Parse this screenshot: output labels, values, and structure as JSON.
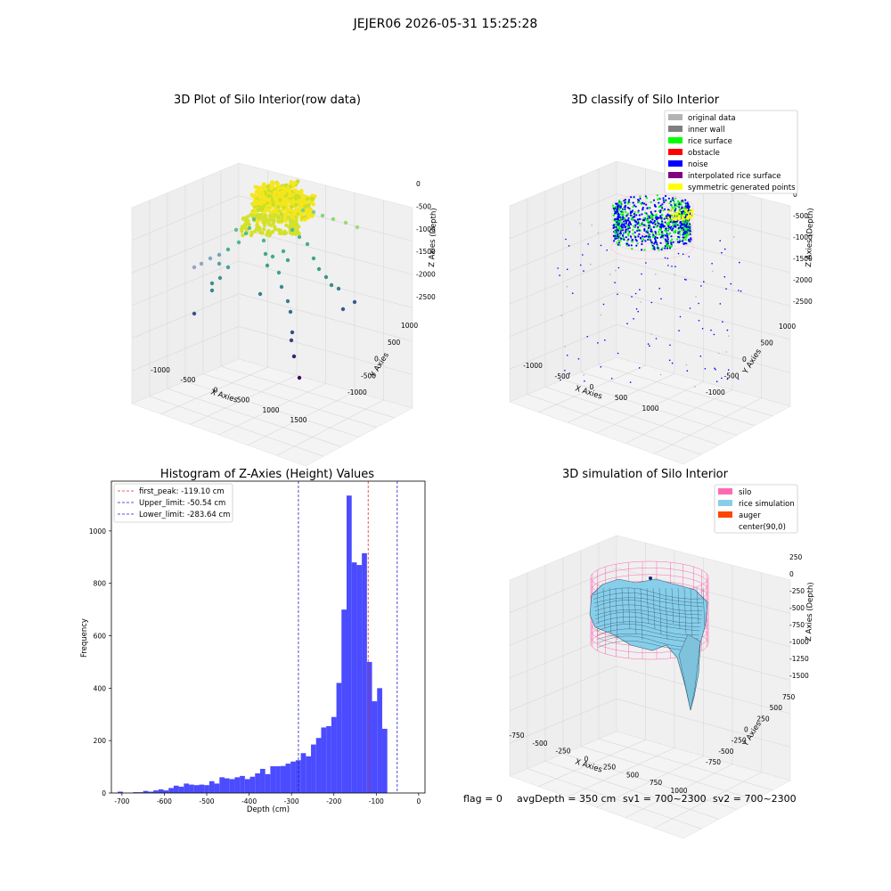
{
  "figure": {
    "title": "JEJER06 2026-05-31 15:25:28",
    "status_line": {
      "flag": "flag = 0",
      "avg_depth": "avgDepth = 350 cm",
      "sv1": "sv1 = 700~2300",
      "sv2": "sv2 = 700~2300"
    }
  },
  "colors": {
    "hist_bar": "#4b4bff",
    "first_peak": "#e03030",
    "limit_lines": "#2020c0",
    "pane_wall": "#eeeeee",
    "pane_floor": "#f4f4f4",
    "grid": "#d8d8d8"
  },
  "chart_data": [
    {
      "type": "scatter",
      "projection": "3d",
      "title": "3D Plot of Silo Interior(row data)",
      "xlabel": "X Axies",
      "ylabel": "Y Axies",
      "zlabel": "Z Axies (Depth)",
      "x_ticks": [
        "-1000",
        "-500",
        "0",
        "500",
        "1000",
        "1500"
      ],
      "y_ticks": [
        "-1000",
        "-500",
        "0",
        "500",
        "1000"
      ],
      "z_ticks": [
        "0",
        "-500",
        "-1000",
        "-1500",
        "-2000",
        "-2500"
      ],
      "colormap": "viridis",
      "description_series": [
        {
          "name": "",
          "values": []
        }
      ]
    },
    {
      "type": "scatter",
      "projection": "3d",
      "title": "3D classify of Silo Interior",
      "xlabel": "X Axies",
      "ylabel": "Y Axies",
      "zlabel": "Z Axies (Depth)",
      "x_ticks": [
        "-1000",
        "-500",
        "0",
        "500",
        "1000"
      ],
      "y_ticks": [
        "-1000",
        "-500",
        "0",
        "500",
        "1000"
      ],
      "z_ticks": [
        "0",
        "-500",
        "-1000",
        "-1500",
        "-2000",
        "-2500"
      ],
      "legend_position": "top-right",
      "legend": [
        {
          "label": "original data",
          "color": "#b3b3b3"
        },
        {
          "label": "inner wall",
          "color": "#7f7f7f"
        },
        {
          "label": "rice surface",
          "color": "#00ff00"
        },
        {
          "label": "obstacle",
          "color": "#ff0000"
        },
        {
          "label": "noise",
          "color": "#0000ff"
        },
        {
          "label": "interpolated rice surface",
          "color": "#800080"
        },
        {
          "label": "symmetric generated points",
          "color": "#ffff00"
        }
      ]
    },
    {
      "type": "bar",
      "title": "Histogram of Z-Axies (Height) Values",
      "xlabel": "Depth (cm)",
      "ylabel": "Frequency",
      "xlim": [
        -725,
        15
      ],
      "ylim": [
        0,
        1190
      ],
      "x_ticks": [
        -700,
        -600,
        -500,
        -400,
        -300,
        -200,
        -100,
        0
      ],
      "y_ticks": [
        0,
        200,
        400,
        600,
        800,
        1000
      ],
      "bin_width": 12,
      "bins_start": -710,
      "values": [
        5,
        0,
        0,
        3,
        3,
        8,
        5,
        10,
        14,
        10,
        19,
        28,
        24,
        36,
        32,
        30,
        32,
        30,
        45,
        36,
        60,
        56,
        53,
        60,
        65,
        53,
        62,
        75,
        92,
        72,
        102,
        102,
        103,
        112,
        120,
        125,
        152,
        140,
        185,
        210,
        250,
        255,
        290,
        420,
        700,
        1135,
        880,
        870,
        915,
        500,
        350,
        400,
        245
      ],
      "legend_position": "top-left",
      "vlines": [
        {
          "label": "first_peak: -119.10 cm",
          "x": -119.1,
          "role": "first_peak"
        },
        {
          "label": "Upper_limit: -50.54 cm",
          "x": -50.54,
          "role": "limit"
        },
        {
          "label": "Lower_limit: -283.64 cm",
          "x": -283.64,
          "role": "limit"
        }
      ]
    },
    {
      "type": "surface",
      "projection": "3d",
      "title": "3D simulation of Silo Interior",
      "xlabel": "X Axies",
      "ylabel": "Y Axies",
      "zlabel": "Z Axies (Depth)",
      "x_ticks": [
        "-750",
        "-500",
        "-250",
        "0",
        "250",
        "500",
        "750",
        "1000"
      ],
      "y_ticks": [
        "-750",
        "-500",
        "-250",
        "0",
        "250",
        "500",
        "750"
      ],
      "z_ticks": [
        "250",
        "0",
        "-250",
        "-500",
        "-750",
        "-1000",
        "-1250",
        "-1500"
      ],
      "legend_position": "top-right",
      "legend": [
        {
          "label": "silo",
          "color": "#ff69b4"
        },
        {
          "label": "rice simulation",
          "color": "#87ceeb"
        },
        {
          "label": "auger",
          "color": "#ff4500"
        },
        {
          "label": "center(90,0)",
          "color": "#ffffff"
        }
      ]
    }
  ]
}
